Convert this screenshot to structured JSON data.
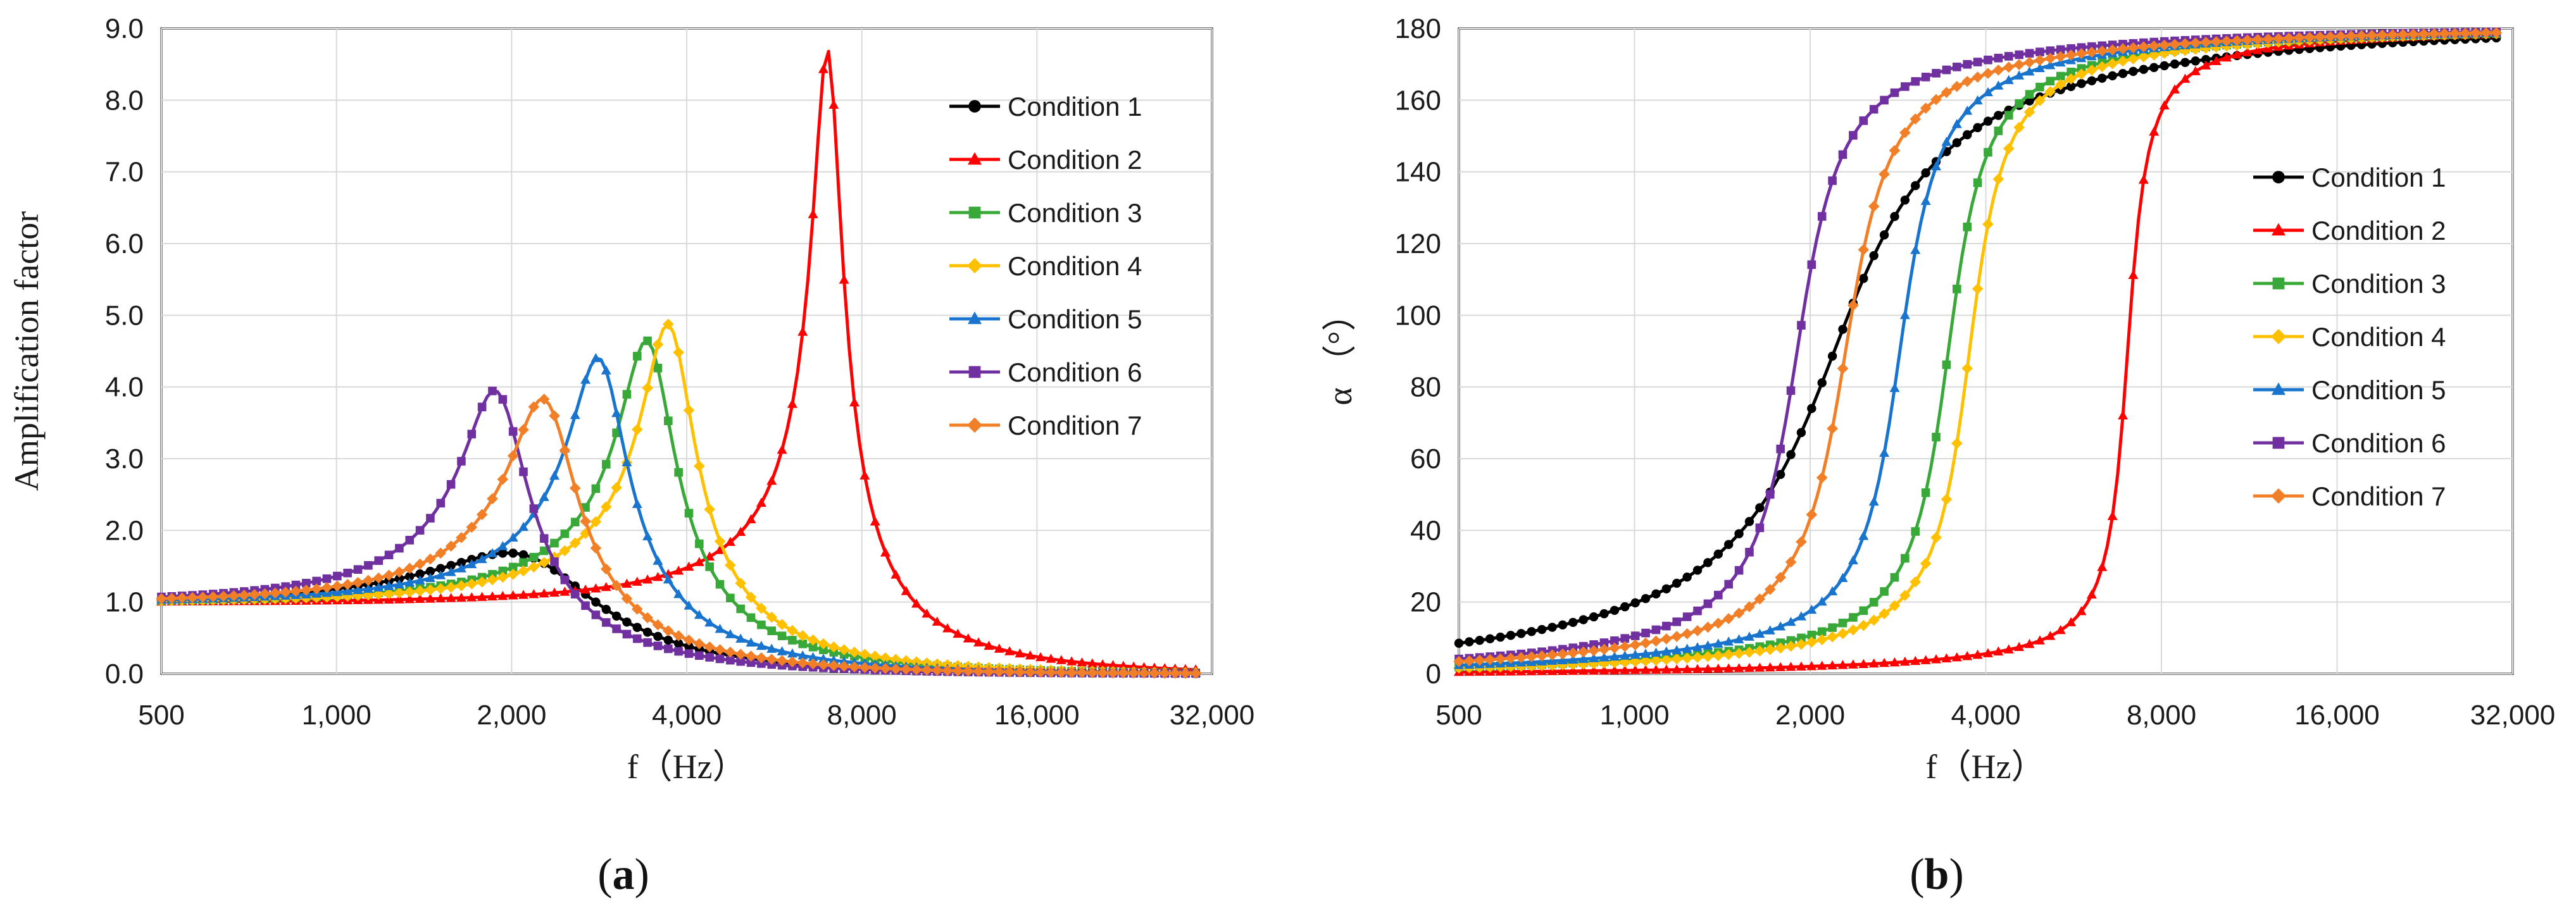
{
  "chart_data": [
    {
      "type": "line",
      "panel_label_open": "(",
      "panel_label_letter": "a",
      "panel_label_close": ")",
      "xlabel": "f（Hz）",
      "ylabel": "Amplification  factor",
      "x_scale": "log2",
      "xlim": [
        500,
        32000
      ],
      "ylim": [
        0,
        9
      ],
      "x_ticks": [
        500,
        1000,
        2000,
        4000,
        8000,
        16000,
        32000
      ],
      "x_tick_labels": [
        "500",
        "1,000",
        "2,000",
        "4,000",
        "8,000",
        "16,000",
        "32,000"
      ],
      "y_ticks": [
        0,
        1,
        2,
        3,
        4,
        5,
        6,
        7,
        8,
        9
      ],
      "y_tick_labels": [
        "0.0",
        "1.0",
        "2.0",
        "3.0",
        "4.0",
        "5.0",
        "6.0",
        "7.0",
        "8.0",
        "9.0"
      ],
      "grid": true,
      "legend_position": "top-right",
      "model": "resonance",
      "series": [
        {
          "name": "Condition 1",
          "color": "#000000",
          "marker": "circle",
          "f0": 2200,
          "peak": 1.6
        },
        {
          "name": "Condition 2",
          "color": "#ff0000",
          "marker": "triangle",
          "f0": 7000,
          "peak": 8.7
        },
        {
          "name": "Condition 3",
          "color": "#38a838",
          "marker": "square",
          "f0": 3450,
          "peak": 4.62
        },
        {
          "name": "Condition 4",
          "color": "#ffc000",
          "marker": "diamond",
          "f0": 3750,
          "peak": 4.85
        },
        {
          "name": "Condition 5",
          "color": "#1874cd",
          "marker": "triangle",
          "f0": 2850,
          "peak": 4.38
        },
        {
          "name": "Condition 6",
          "color": "#7030a0",
          "marker": "square",
          "f0": 1900,
          "peak": 3.92
        },
        {
          "name": "Condition 7",
          "color": "#f07f28",
          "marker": "diamond",
          "f0": 2300,
          "peak": 3.8
        }
      ]
    },
    {
      "type": "line",
      "panel_label_open": "(",
      "panel_label_letter": "b",
      "panel_label_close": ")",
      "xlabel": "f（Hz）",
      "ylabel": "α （°）",
      "x_scale": "log2",
      "xlim": [
        500,
        32000
      ],
      "ylim": [
        0,
        180
      ],
      "x_ticks": [
        500,
        1000,
        2000,
        4000,
        8000,
        16000,
        32000
      ],
      "x_tick_labels": [
        "500",
        "1,000",
        "2,000",
        "4,000",
        "8,000",
        "16,000",
        "32,000"
      ],
      "y_ticks": [
        0,
        20,
        40,
        60,
        80,
        100,
        120,
        140,
        160,
        180
      ],
      "y_tick_labels": [
        "0",
        "20",
        "40",
        "60",
        "80",
        "100",
        "120",
        "140",
        "160",
        "180"
      ],
      "grid": true,
      "legend_position": "center-right",
      "model": "phase",
      "series": [
        {
          "name": "Condition 1",
          "color": "#000000",
          "marker": "circle",
          "f0": 2200,
          "peak": 1.6
        },
        {
          "name": "Condition 2",
          "color": "#ff0000",
          "marker": "triangle",
          "f0": 7000,
          "peak": 8.7
        },
        {
          "name": "Condition 3",
          "color": "#38a838",
          "marker": "square",
          "f0": 3450,
          "peak": 4.62
        },
        {
          "name": "Condition 4",
          "color": "#ffc000",
          "marker": "diamond",
          "f0": 3750,
          "peak": 4.85
        },
        {
          "name": "Condition 5",
          "color": "#1874cd",
          "marker": "triangle",
          "f0": 2850,
          "peak": 4.38
        },
        {
          "name": "Condition 6",
          "color": "#7030a0",
          "marker": "square",
          "f0": 1900,
          "peak": 3.92
        },
        {
          "name": "Condition 7",
          "color": "#f07f28",
          "marker": "diamond",
          "f0": 2300,
          "peak": 3.8
        }
      ]
    }
  ]
}
